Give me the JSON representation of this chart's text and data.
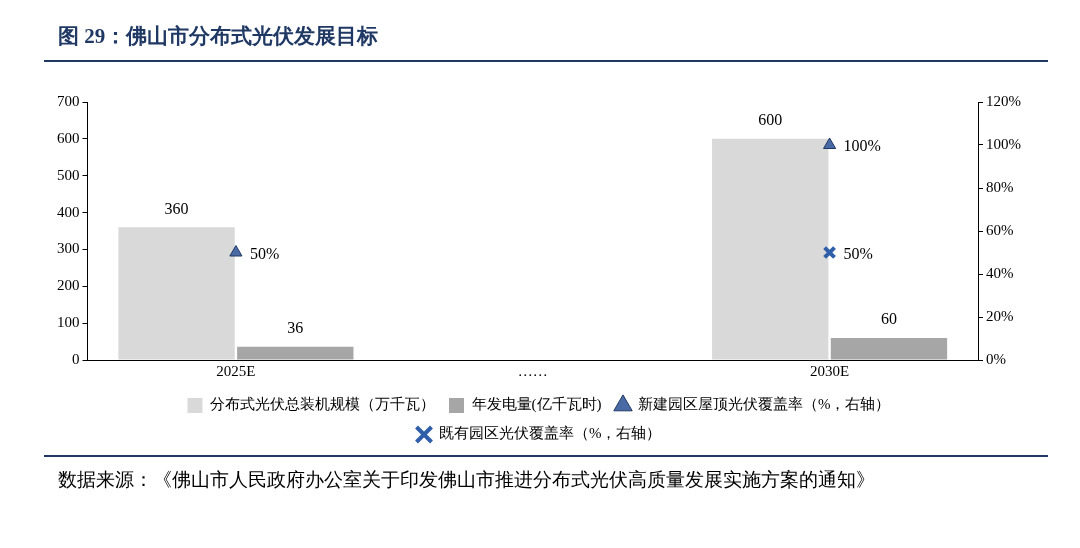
{
  "chart_data": {
    "type": "bar",
    "title": "图 29：佛山市分布式光伏发展目标",
    "categories": [
      "2025E",
      "……",
      "2030E"
    ],
    "series": [
      {
        "name": "分布式光伏总装机规模（万千瓦）",
        "color": "#d9d9d9",
        "values": [
          360,
          null,
          600
        ],
        "value_labels": [
          "360",
          null,
          "600"
        ]
      },
      {
        "name": "年发电量(亿千瓦时)",
        "color": "#a6a6a6",
        "values": [
          36,
          null,
          60
        ],
        "value_labels": [
          "36",
          null,
          "60"
        ]
      },
      {
        "name": "新建园区屋顶光伏覆盖率（%，右轴）",
        "type": "scatter",
        "axis": "y2",
        "color": "#4a6aa5",
        "marker": "triangle",
        "values": [
          50,
          null,
          100
        ],
        "value_labels": [
          "50%",
          null,
          "100%"
        ]
      },
      {
        "name": "既有园区光伏覆盖率（%，右轴）",
        "type": "scatter",
        "axis": "y2",
        "color": "#2e5fa8",
        "marker": "cross",
        "values": [
          null,
          null,
          50
        ],
        "value_labels": [
          null,
          null,
          "50%"
        ]
      }
    ],
    "ylim": [
      0,
      700
    ],
    "yticks": [
      0,
      100,
      200,
      300,
      400,
      500,
      600,
      700
    ],
    "y2lim": [
      0,
      120
    ],
    "y2ticks": [
      {
        "value": 0,
        "label": "0%"
      },
      {
        "value": 20,
        "label": "20%"
      },
      {
        "value": 40,
        "label": "40%"
      },
      {
        "value": 60,
        "label": "60%"
      },
      {
        "value": 80,
        "label": "80%"
      },
      {
        "value": 100,
        "label": "100%"
      },
      {
        "value": 120,
        "label": "120%"
      }
    ],
    "grid": false,
    "legend": "bottom",
    "annotations": [
      "数据来源：《佛山市人民政府办公室关于印发佛山市推进分布式光伏高质量发展实施方案的通知》"
    ]
  }
}
